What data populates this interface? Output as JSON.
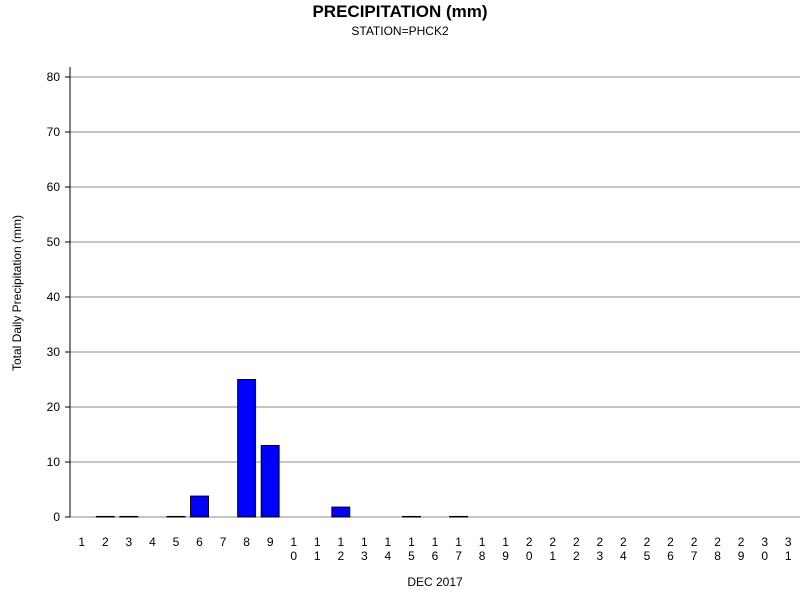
{
  "chart_data": {
    "type": "bar",
    "title": "PRECIPITATION (mm)",
    "subtitle": "STATION=PHCK2",
    "x_label": "DEC 2017",
    "y_label": "Total Daily Precipitation (mm)",
    "categories": [
      "1",
      "2",
      "3",
      "4",
      "5",
      "6",
      "7",
      "8",
      "9",
      "10",
      "11",
      "12",
      "13",
      "14",
      "15",
      "16",
      "17",
      "18",
      "19",
      "20",
      "21",
      "22",
      "23",
      "24",
      "25",
      "26",
      "27",
      "28",
      "29",
      "30",
      "31"
    ],
    "values": [
      0,
      0.1,
      0.1,
      0,
      0.1,
      3.8,
      0,
      25,
      13,
      0,
      0,
      1.8,
      0,
      0,
      0.1,
      0,
      0.1,
      0,
      0,
      0,
      0,
      0,
      0,
      0,
      0,
      0,
      0,
      0,
      0,
      0,
      0
    ],
    "color": "#0000ff",
    "ylim": [
      0,
      80
    ],
    "yticks": [
      0,
      10,
      20,
      30,
      40,
      50,
      60,
      70,
      80
    ],
    "grid": true
  }
}
